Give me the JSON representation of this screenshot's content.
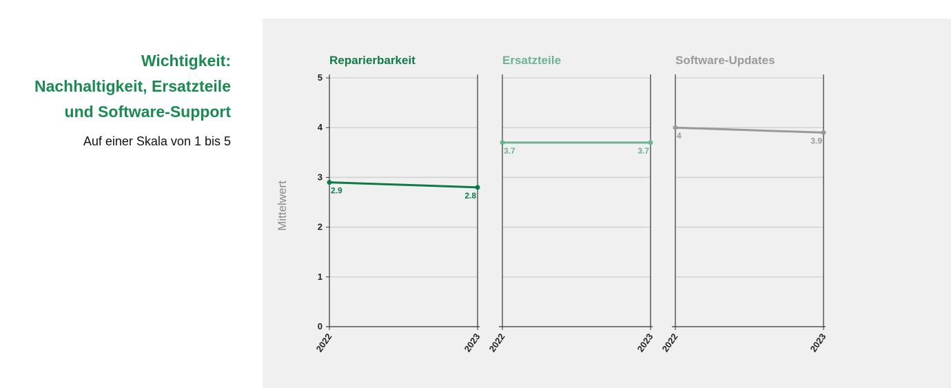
{
  "intro": {
    "title_lines": [
      "Wichtigkeit:",
      "Nachhaltigkeit, Ersatzteile",
      "und Software-Support"
    ],
    "subtitle": "Auf einer Skala von 1 bis 5"
  },
  "chart_data": {
    "type": "line",
    "ylabel": "Mittelwert",
    "ylim": [
      0,
      5
    ],
    "yticks": [
      "0",
      "1",
      "2",
      "3",
      "4",
      "5"
    ],
    "x": [
      "2022",
      "2023"
    ],
    "grid": true,
    "panels": [
      {
        "title": "Reparierbarkeit",
        "color": "#0e7a45",
        "values": [
          2.9,
          2.8
        ],
        "labels": [
          "2.9",
          "2.8"
        ]
      },
      {
        "title": "Ersatzteile",
        "color": "#6bb391",
        "values": [
          3.7,
          3.7
        ],
        "labels": [
          "3.7",
          "3.7"
        ]
      },
      {
        "title": "Software-Updates",
        "color": "#999999",
        "values": [
          4.0,
          3.9
        ],
        "labels": [
          "4",
          "3.9"
        ]
      }
    ]
  }
}
